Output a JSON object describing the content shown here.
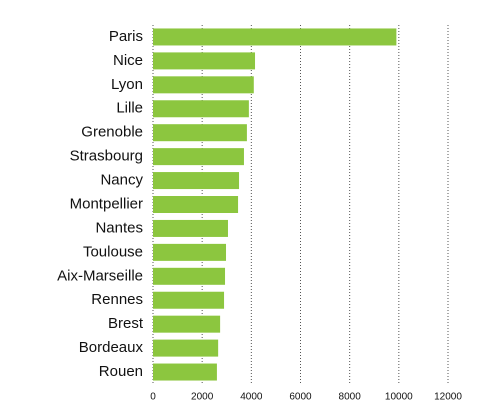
{
  "chart_data": {
    "type": "bar",
    "orientation": "horizontal",
    "categories": [
      "Paris",
      "Nice",
      "Lyon",
      "Lille",
      "Grenoble",
      "Strasbourg",
      "Nancy",
      "Montpellier",
      "Nantes",
      "Toulouse",
      "Aix-Marseille",
      "Rennes",
      "Brest",
      "Bordeaux",
      "Rouen"
    ],
    "values": [
      9900,
      4150,
      4100,
      3900,
      3820,
      3700,
      3500,
      3460,
      3050,
      2970,
      2930,
      2890,
      2730,
      2650,
      2600
    ],
    "color": "#8cc63f",
    "xlim": [
      0,
      12000
    ],
    "xticks": [
      0,
      2000,
      4000,
      6000,
      8000,
      10000,
      12000
    ],
    "grid": true
  }
}
